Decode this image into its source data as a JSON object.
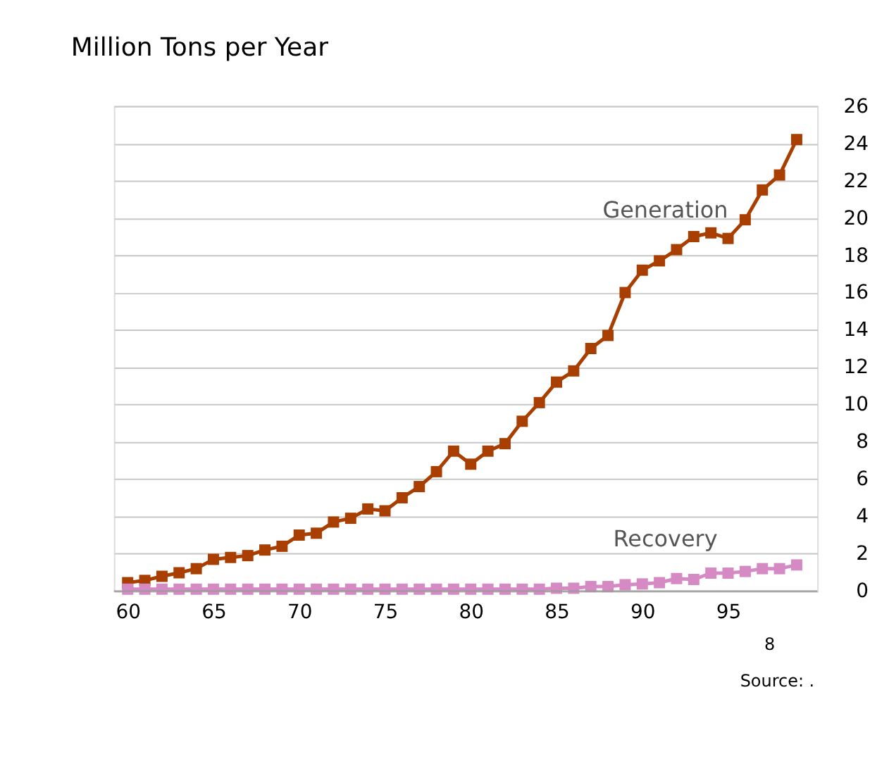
{
  "chart_data": {
    "type": "line",
    "title": "Million Tons per Year",
    "x": [
      1960,
      1961,
      1962,
      1963,
      1964,
      1965,
      1966,
      1967,
      1968,
      1969,
      1970,
      1971,
      1972,
      1973,
      1974,
      1975,
      1976,
      1977,
      1978,
      1979,
      1980,
      1981,
      1982,
      1983,
      1984,
      1985,
      1986,
      1987,
      1988,
      1989,
      1990,
      1991,
      1992,
      1993,
      1994,
      1995,
      1996,
      1997,
      1998,
      1999
    ],
    "series": [
      {
        "name": "Generation",
        "color": "#a83e00",
        "values": [
          0.45,
          0.57,
          0.79,
          0.98,
          1.2,
          1.7,
          1.8,
          1.9,
          2.2,
          2.4,
          3.0,
          3.1,
          3.7,
          3.9,
          4.4,
          4.3,
          5.0,
          5.6,
          6.4,
          7.5,
          6.8,
          7.5,
          7.9,
          9.1,
          10.1,
          11.2,
          11.8,
          13.0,
          13.7,
          16.0,
          17.2,
          17.7,
          18.3,
          19.0,
          19.2,
          18.9,
          19.9,
          21.5,
          22.3,
          24.2
        ]
      },
      {
        "name": "Recovery",
        "color": "#d68ac4",
        "values": [
          0.1,
          0.1,
          0.1,
          0.1,
          0.1,
          0.1,
          0.1,
          0.1,
          0.1,
          0.1,
          0.1,
          0.1,
          0.1,
          0.1,
          0.1,
          0.1,
          0.1,
          0.1,
          0.1,
          0.1,
          0.1,
          0.1,
          0.1,
          0.1,
          0.1,
          0.15,
          0.15,
          0.24,
          0.24,
          0.34,
          0.38,
          0.45,
          0.67,
          0.62,
          0.96,
          0.96,
          1.05,
          1.2,
          1.2,
          1.4
        ]
      }
    ],
    "xlim": [
      1959.2,
      2000.2
    ],
    "xticks": [
      {
        "value": 1960,
        "label": "60"
      },
      {
        "value": 1965,
        "label": "65"
      },
      {
        "value": 1970,
        "label": "70"
      },
      {
        "value": 1975,
        "label": "75"
      },
      {
        "value": 1980,
        "label": "80"
      },
      {
        "value": 1985,
        "label": "85"
      },
      {
        "value": 1990,
        "label": "90"
      },
      {
        "value": 1995,
        "label": "95"
      }
    ],
    "ylim": [
      0,
      26
    ],
    "yticks": [
      0,
      2,
      4,
      6,
      8,
      10,
      12,
      14,
      16,
      18,
      20,
      22,
      24,
      26
    ],
    "grid": "y",
    "legend": false,
    "marker": "square",
    "line_style": "solid",
    "annotations": [
      "8",
      "Source: ."
    ]
  }
}
